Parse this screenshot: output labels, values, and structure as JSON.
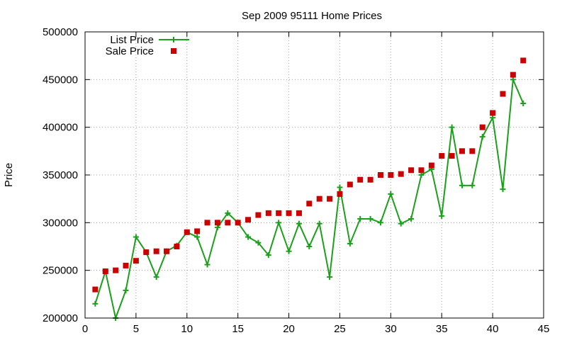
{
  "chart_data": {
    "type": "line",
    "title": "Sep 2009 95111 Home Prices",
    "xlabel": "",
    "ylabel": "Price",
    "xlim": [
      0,
      45
    ],
    "ylim": [
      200000,
      500000
    ],
    "x_ticks": [
      0,
      5,
      10,
      15,
      20,
      25,
      30,
      35,
      40,
      45
    ],
    "y_ticks": [
      200000,
      250000,
      300000,
      350000,
      400000,
      450000,
      500000
    ],
    "grid": true,
    "legend_position": "top-left",
    "series": [
      {
        "name": "List Price",
        "style": "line+cross",
        "color": "#1aa01a",
        "points": [
          [
            1,
            215000
          ],
          [
            2,
            249000
          ],
          [
            3,
            200000
          ],
          [
            4,
            229000
          ],
          [
            5,
            285000
          ],
          [
            6,
            269000
          ],
          [
            7,
            243000
          ],
          [
            8,
            270000
          ],
          [
            9,
            276000
          ],
          [
            10,
            290000
          ],
          [
            11,
            285000
          ],
          [
            12,
            256000
          ],
          [
            13,
            295000
          ],
          [
            14,
            310000
          ],
          [
            15,
            300000
          ],
          [
            16,
            285000
          ],
          [
            17,
            279000
          ],
          [
            18,
            266000
          ],
          [
            19,
            300000
          ],
          [
            20,
            270000
          ],
          [
            21,
            299000
          ],
          [
            22,
            275000
          ],
          [
            23,
            299000
          ],
          [
            24,
            243000
          ],
          [
            25,
            337000
          ],
          [
            26,
            278000
          ],
          [
            27,
            304000
          ],
          [
            28,
            304000
          ],
          [
            29,
            300000
          ],
          [
            30,
            330000
          ],
          [
            31,
            299000
          ],
          [
            32,
            304000
          ],
          [
            33,
            350000
          ],
          [
            34,
            356000
          ],
          [
            35,
            307000
          ],
          [
            36,
            400000
          ],
          [
            37,
            339000
          ],
          [
            38,
            339000
          ],
          [
            39,
            390000
          ],
          [
            40,
            410000
          ],
          [
            41,
            335000
          ],
          [
            42,
            450000
          ],
          [
            43,
            425000
          ]
        ]
      },
      {
        "name": "Sale Price",
        "style": "square",
        "color": "#cc0000",
        "points": [
          [
            1,
            230000
          ],
          [
            2,
            249000
          ],
          [
            3,
            250000
          ],
          [
            4,
            255000
          ],
          [
            5,
            260000
          ],
          [
            6,
            269000
          ],
          [
            7,
            270000
          ],
          [
            8,
            270000
          ],
          [
            9,
            275000
          ],
          [
            10,
            290000
          ],
          [
            11,
            291000
          ],
          [
            12,
            300000
          ],
          [
            13,
            300000
          ],
          [
            14,
            300000
          ],
          [
            15,
            300000
          ],
          [
            16,
            303000
          ],
          [
            17,
            308000
          ],
          [
            18,
            310000
          ],
          [
            19,
            310000
          ],
          [
            20,
            310000
          ],
          [
            21,
            310000
          ],
          [
            22,
            320000
          ],
          [
            23,
            325000
          ],
          [
            24,
            325000
          ],
          [
            25,
            330000
          ],
          [
            26,
            340000
          ],
          [
            27,
            345000
          ],
          [
            28,
            345000
          ],
          [
            29,
            350000
          ],
          [
            30,
            350000
          ],
          [
            31,
            351000
          ],
          [
            32,
            355000
          ],
          [
            33,
            355000
          ],
          [
            34,
            360000
          ],
          [
            35,
            370000
          ],
          [
            36,
            370000
          ],
          [
            37,
            375000
          ],
          [
            38,
            375000
          ],
          [
            39,
            400000
          ],
          [
            40,
            415000
          ],
          [
            41,
            435000
          ],
          [
            42,
            455000
          ],
          [
            43,
            470000
          ]
        ]
      }
    ]
  }
}
